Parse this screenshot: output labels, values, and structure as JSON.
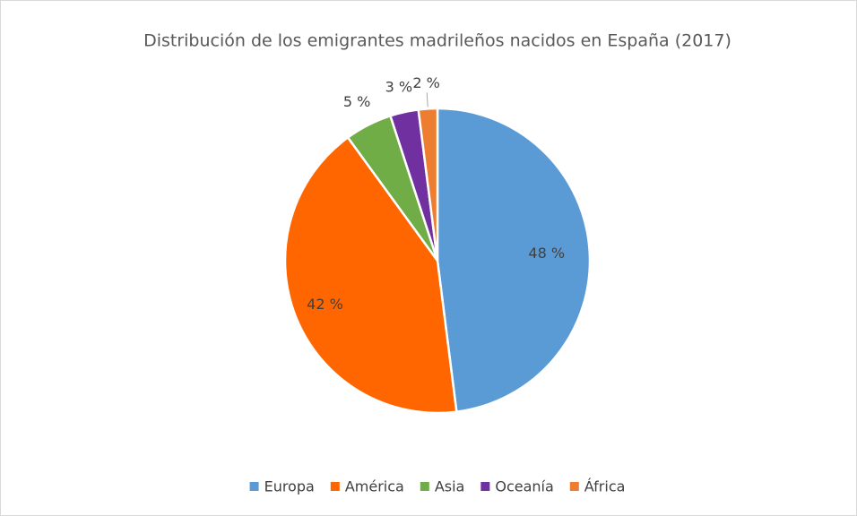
{
  "chart_data": {
    "type": "pie",
    "title": "Distribución de los emigrantes madrileños nacidos en España (2017)",
    "categories": [
      "Europa",
      "América",
      "Asia",
      "Oceanía",
      "África"
    ],
    "values": [
      48,
      42,
      5,
      3,
      2
    ],
    "value_labels": [
      "48 %",
      "42 %",
      "5 %",
      "3 %",
      "2 %"
    ],
    "colors": [
      "#5b9bd5",
      "#ff6600",
      "#70ad47",
      "#7030a0",
      "#ed7d31"
    ],
    "legend": "bottom"
  }
}
